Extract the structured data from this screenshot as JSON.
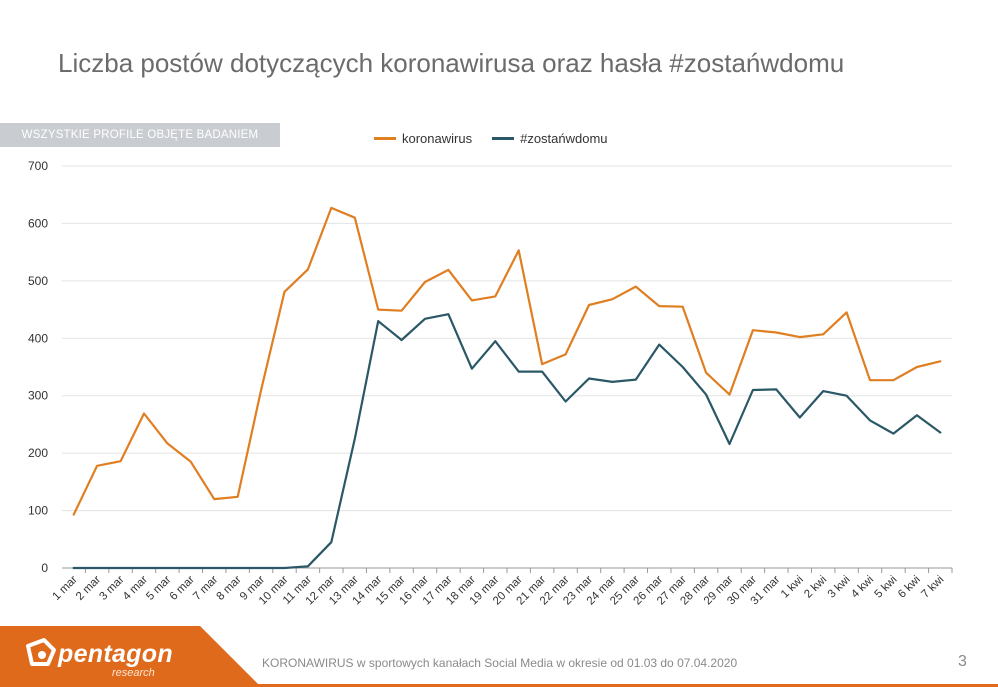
{
  "header": {
    "title": "Liczba postów dotyczących koronawirusa oraz hasła #zostańwdomu",
    "badge": "WSZYSTKIE PROFILE OBJĘTE BADANIEM"
  },
  "footer": {
    "logo": "pentagon",
    "logo_sub": "research",
    "caption": "KORONAWIRUS w sportowych kanałach Social Media w okresie od 01.03 do 07.04.2020",
    "page": "3"
  },
  "colors": {
    "accent": "#e06a1b",
    "series1": "#e07e22",
    "series2": "#2a5866",
    "grid": "#e3e3e3"
  },
  "chart_data": {
    "type": "line",
    "categories": [
      "1 mar",
      "2 mar",
      "3 mar",
      "4 mar",
      "5 mar",
      "6 mar",
      "7 mar",
      "8 mar",
      "9 mar",
      "10 mar",
      "11 mar",
      "12 mar",
      "13 mar",
      "14 mar",
      "15 mar",
      "16 mar",
      "17 mar",
      "18 mar",
      "19 mar",
      "20 mar",
      "21 mar",
      "22 mar",
      "23 mar",
      "24 mar",
      "25 mar",
      "26 mar",
      "27 mar",
      "28 mar",
      "29 mar",
      "30 mar",
      "31 mar",
      "1 kwi",
      "2 kwi",
      "3 kwi",
      "4 kwi",
      "5 kwi",
      "6 kwi",
      "7 kwi"
    ],
    "series": [
      {
        "name": "koronawirus",
        "values": [
          93,
          178,
          186,
          269,
          217,
          185,
          120,
          124,
          310,
          481,
          520,
          627,
          610,
          450,
          448,
          498,
          519,
          466,
          473,
          553,
          355,
          372,
          458,
          468,
          490,
          456,
          455,
          340,
          302,
          414,
          410,
          402,
          407,
          445,
          327,
          327,
          350,
          360
        ]
      },
      {
        "name": "#zostańwdomu",
        "values": [
          0,
          0,
          0,
          0,
          0,
          0,
          0,
          0,
          0,
          0,
          3,
          45,
          225,
          430,
          397,
          434,
          442,
          347,
          395,
          342,
          342,
          290,
          330,
          324,
          328,
          389,
          350,
          302,
          216,
          310,
          311,
          262,
          308,
          300,
          257,
          234,
          266,
          236
        ]
      }
    ],
    "yticks": [
      "0",
      "100",
      "200",
      "300",
      "400",
      "500",
      "600",
      "700"
    ],
    "ylim": [
      0,
      700
    ],
    "grid": true,
    "legend_position": "top-center"
  }
}
